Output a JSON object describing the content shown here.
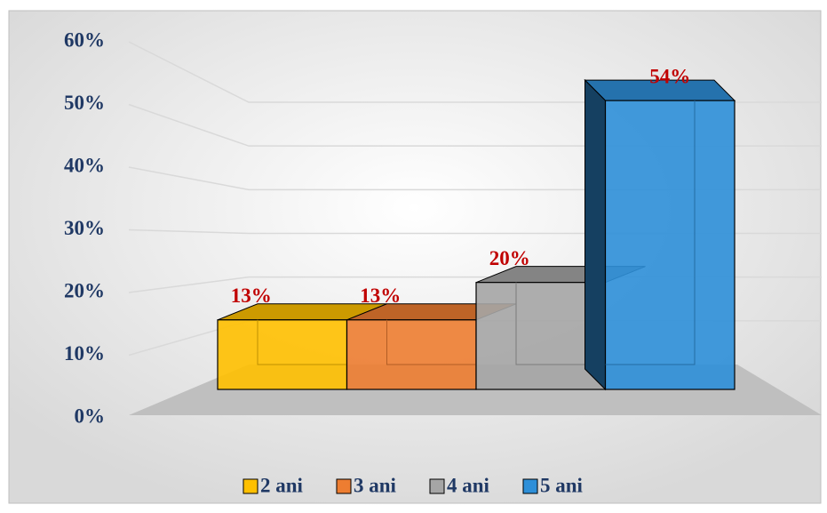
{
  "chart_data": {
    "type": "bar3d",
    "categories": [
      null
    ],
    "series": [
      {
        "name": "2 ani",
        "color": "#ffc000",
        "values": [
          13
        ],
        "value_labels": [
          "13%"
        ]
      },
      {
        "name": "3 ani",
        "color": "#ed7d31",
        "values": [
          13
        ],
        "value_labels": [
          "13%"
        ]
      },
      {
        "name": "4 ani",
        "color": "#a5a5a5",
        "values": [
          20
        ],
        "value_labels": [
          "20%"
        ]
      },
      {
        "name": "5 ani",
        "color": "#2e8fd8",
        "values": [
          54
        ],
        "value_labels": [
          "54%"
        ]
      }
    ],
    "ylim": [
      0,
      60
    ],
    "yticks": [
      {
        "value": 0,
        "label": "0%"
      },
      {
        "value": 10,
        "label": "10%"
      },
      {
        "value": 20,
        "label": "20%"
      },
      {
        "value": 30,
        "label": "30%"
      },
      {
        "value": 40,
        "label": "40%"
      },
      {
        "value": 50,
        "label": "50%"
      },
      {
        "value": 60,
        "label": "60%"
      }
    ],
    "grid": true,
    "legend": "bottom",
    "value_label_color": "#c00000",
    "axis_label_color": "#1f3864"
  }
}
